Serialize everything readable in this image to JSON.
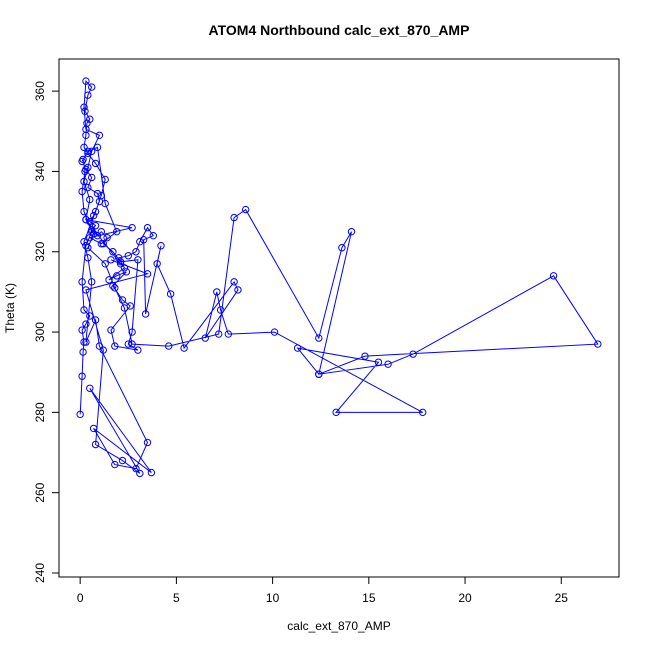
{
  "chart_data": {
    "type": "scatter",
    "title": "ATOM4 Northbound calc_ext_870_AMP",
    "xlabel": "calc_ext_870_AMP",
    "ylabel": "Theta (K)",
    "xlim": [
      -1.1,
      28.0
    ],
    "ylim": [
      239.0,
      368.0
    ],
    "xticks": [
      0,
      5,
      10,
      15,
      20,
      25
    ],
    "xtick_labels": [
      "0",
      "5",
      "10",
      "15",
      "20",
      "25"
    ],
    "yticks": [
      240,
      260,
      280,
      300,
      320,
      340,
      360
    ],
    "ytick_labels": [
      "240",
      "260",
      "280",
      "300",
      "320",
      "340",
      "360"
    ],
    "grid": false,
    "legend": "none",
    "connected": true,
    "series": [
      {
        "color": "#0000ff",
        "x": [
          0.0,
          0.1,
          0.15,
          0.2,
          0.1,
          0.3,
          0.5,
          0.2,
          0.1,
          0.3,
          0.6,
          0.2,
          0.1,
          0.25,
          0.15,
          0.1,
          0.4,
          0.9,
          1.3,
          1.9,
          1.1,
          0.5,
          2.7,
          0.3,
          2.1,
          1.6,
          3.5,
          0.3,
          1.2,
          0.8,
          2.2,
          3.1,
          0.5,
          3.7,
          0.7,
          1.8,
          2.9,
          3.5,
          1.0,
          0.8,
          0.3,
          0.6,
          0.4,
          0.2,
          0.8,
          1.1,
          1.3,
          0.8,
          0.4,
          0.2,
          0.3,
          0.35,
          0.5,
          0.25,
          0.4,
          0.6,
          0.3,
          0.2,
          0.3,
          1.0,
          0.6,
          0.4,
          0.2,
          0.5,
          0.3,
          0.7,
          0.4,
          1.3,
          1.8,
          2.3,
          2.7,
          4.6,
          7.2,
          8.0,
          8.6,
          12.4,
          13.6,
          14.1,
          12.4,
          16.0,
          17.3,
          24.6,
          26.9,
          14.8,
          12.4,
          11.3,
          15.5,
          13.3,
          17.8,
          10.1,
          7.7,
          7.3,
          7.1,
          6.5,
          8.2,
          8.0,
          5.4,
          4.7,
          4.0,
          4.2,
          3.4,
          3.3,
          3.8,
          3.5,
          3.1,
          2.9,
          2.5,
          2.0,
          2.3,
          1.5,
          1.9,
          2.4,
          1.7,
          2.2,
          2.6,
          1.6,
          1.8,
          3.0,
          2.5,
          2.7,
          3.0,
          2.1,
          1.7,
          1.2,
          1.4,
          1.1,
          0.9,
          0.6,
          0.8,
          0.5,
          0.7,
          1.0,
          0.9,
          0.4,
          0.6,
          0.3
        ],
        "y": [
          279.5,
          289.0,
          295.0,
          297.5,
          300.5,
          302.0,
          304.0,
          305.5,
          312.5,
          321.5,
          325.0,
          330.0,
          335.0,
          340.0,
          343.0,
          342.5,
          345.0,
          346.0,
          332.0,
          325.0,
          322.0,
          323.5,
          326.0,
          328.0,
          317.0,
          318.0,
          314.5,
          310.5,
          295.5,
          272.0,
          268.0,
          264.8,
          286.0,
          265.0,
          276.0,
          267.0,
          266.0,
          272.5,
          296.5,
          303.0,
          297.5,
          312.5,
          318.5,
          322.5,
          330.0,
          334.0,
          338.0,
          342.0,
          344.5,
          346.0,
          349.0,
          352.0,
          353.0,
          355.0,
          359.0,
          361.0,
          362.5,
          356.0,
          350.5,
          349.0,
          345.0,
          341.0,
          337.5,
          333.0,
          328.0,
          324.5,
          321.0,
          317.0,
          311.0,
          306.0,
          297.0,
          296.5,
          299.5,
          328.5,
          330.5,
          298.5,
          321.0,
          325.0,
          289.5,
          292.0,
          294.5,
          314.0,
          297.0,
          294.0,
          289.5,
          296.0,
          292.5,
          280.0,
          280.0,
          300.0,
          299.5,
          305.5,
          310.0,
          298.5,
          310.5,
          312.5,
          296.0,
          309.5,
          317.0,
          321.5,
          304.5,
          323.0,
          324.0,
          326.0,
          322.5,
          320.0,
          319.0,
          318.5,
          316.0,
          313.0,
          314.0,
          315.0,
          311.5,
          308.0,
          306.5,
          300.5,
          296.5,
          295.5,
          297.0,
          300.0,
          318.0,
          317.5,
          320.0,
          322.0,
          323.5,
          325.0,
          324.0,
          325.5,
          326.5,
          327.5,
          329.0,
          332.5,
          334.5,
          336.0,
          338.5,
          340.5
        ]
      }
    ]
  }
}
